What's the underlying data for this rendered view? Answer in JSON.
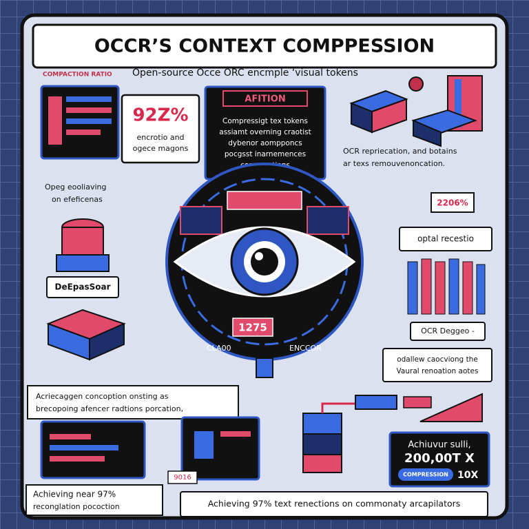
{
  "header": {
    "title": "OCCR’S CONTEXT COMPPESSION",
    "label": "COMPACTION RATIO",
    "subtitle": "Open-source Occe ORC encmple ‘visual tokens"
  },
  "ratio_card": {
    "value": "92Z%",
    "lines": [
      "encrotio and",
      "ogece magons"
    ]
  },
  "center_card": {
    "label": "AFITION",
    "lines": [
      "Compressigt tex tokens",
      "assiamt overning craotist",
      "dybenor aompponcs",
      "pocgsst inarnemences",
      "comporations"
    ]
  },
  "right_note": {
    "lines": [
      "OCR repriecation, and botains",
      "ar texs remouvenoncation."
    ]
  },
  "left_note": {
    "lines": [
      "Opeg eooliaving",
      "on efeficenas"
    ]
  },
  "eye": {
    "value": "1275",
    "left": "CLA00",
    "right": "ENCCOR"
  },
  "right_panel": {
    "value": "2206%",
    "label": "optal recestio",
    "bars_label": "OCR Deggeo -",
    "note": [
      "odallew caocviong the",
      "Vaural renoation aotes"
    ]
  },
  "left_panel": {
    "label": "DeEpasSoar",
    "note": [
      "Acriecaggen concoption onsting as",
      "brecopoing afencer radtions porcation,"
    ]
  },
  "bottom": {
    "left": [
      "Achieving near 97%",
      "reconglation pocoction"
    ],
    "center": "Achieving 97% text renections on commonaty arcapilators",
    "tag": "9016"
  },
  "result_card": {
    "lines": [
      "Achiuvur sulli,",
      "200,00T X"
    ],
    "pill": "COMPRESSION",
    "factor": "10X"
  }
}
